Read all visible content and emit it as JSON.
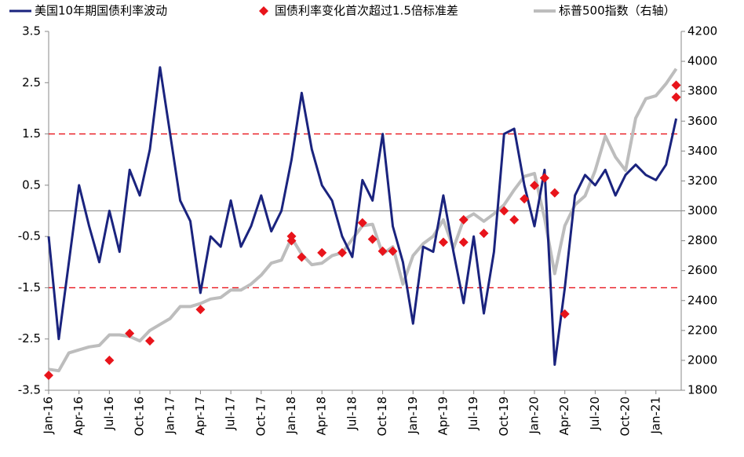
{
  "chart_data": {
    "type": "line",
    "x": [
      "Jan-16",
      "Feb-16",
      "Mar-16",
      "Apr-16",
      "May-16",
      "Jun-16",
      "Jul-16",
      "Aug-16",
      "Sep-16",
      "Oct-16",
      "Nov-16",
      "Dec-16",
      "Jan-17",
      "Feb-17",
      "Mar-17",
      "Apr-17",
      "May-17",
      "Jun-17",
      "Jul-17",
      "Aug-17",
      "Sep-17",
      "Oct-17",
      "Nov-17",
      "Dec-17",
      "Jan-18",
      "Feb-18",
      "Mar-18",
      "Apr-18",
      "May-18",
      "Jun-18",
      "Jul-18",
      "Aug-18",
      "Sep-18",
      "Oct-18",
      "Nov-18",
      "Dec-18",
      "Jan-19",
      "Feb-19",
      "Mar-19",
      "Apr-19",
      "May-19",
      "Jun-19",
      "Jul-19",
      "Aug-19",
      "Sep-19",
      "Oct-19",
      "Nov-19",
      "Dec-19",
      "Jan-20",
      "Feb-20",
      "Mar-20",
      "Apr-20",
      "May-20",
      "Jun-20",
      "Jul-20",
      "Aug-20",
      "Sep-20",
      "Oct-20",
      "Nov-20",
      "Dec-20",
      "Jan-21",
      "Feb-21",
      "Mar-21"
    ],
    "series": [
      {
        "name": "美国10年期国债利率波动",
        "color": "#1a237e",
        "axis": "y",
        "values": [
          -0.5,
          -2.5,
          -1.0,
          0.5,
          -0.3,
          -1.0,
          0.0,
          -0.8,
          0.8,
          0.3,
          1.2,
          2.8,
          1.5,
          0.2,
          -0.2,
          -1.6,
          -0.5,
          -0.7,
          0.2,
          -0.7,
          -0.3,
          0.3,
          -0.4,
          0.0,
          1.0,
          2.3,
          1.2,
          0.5,
          0.2,
          -0.5,
          -0.9,
          0.6,
          0.2,
          1.5,
          -0.3,
          -1.0,
          -2.2,
          -0.7,
          -0.8,
          0.3,
          -0.8,
          -1.8,
          -0.5,
          -2.0,
          -0.8,
          1.5,
          1.6,
          0.5,
          -0.3,
          0.8,
          -3.0,
          -1.5,
          0.3,
          0.7,
          0.5,
          0.8,
          0.3,
          0.7,
          0.9,
          0.7,
          0.6,
          0.9,
          1.8
        ]
      },
      {
        "name": "标普500指数（右轴）",
        "color": "#bdbdbd",
        "axis": "y2",
        "values": [
          1940,
          1930,
          2050,
          2070,
          2090,
          2100,
          2170,
          2170,
          2160,
          2130,
          2200,
          2240,
          2280,
          2360,
          2360,
          2380,
          2410,
          2420,
          2470,
          2470,
          2510,
          2570,
          2650,
          2670,
          2820,
          2710,
          2640,
          2650,
          2700,
          2720,
          2810,
          2900,
          2910,
          2710,
          2760,
          2510,
          2700,
          2780,
          2830,
          2940,
          2750,
          2940,
          2980,
          2930,
          2980,
          3040,
          3140,
          3230,
          3250,
          2950,
          2580,
          2900,
          3040,
          3100,
          3270,
          3500,
          3360,
          3270,
          3620,
          3750,
          3770,
          3850,
          3950
        ]
      }
    ],
    "markers": {
      "name": "国债利率变化首次超过1.5倍标准差",
      "color": "#e8141b",
      "axis": "y2",
      "x": [
        "Jan-16",
        "Jul-16",
        "Sep-16",
        "Nov-16",
        "Apr-17",
        "Jan-18",
        "Jan-18",
        "Feb-18",
        "Apr-18",
        "Jun-18",
        "Aug-18",
        "Sep-18",
        "Oct-18",
        "Nov-18",
        "Apr-19",
        "Jun-19",
        "Jun-19",
        "Aug-19",
        "Oct-19",
        "Nov-19",
        "Dec-19",
        "Jan-20",
        "Feb-20",
        "Feb-20",
        "Mar-20",
        "Apr-20",
        "Mar-21",
        "Mar-21"
      ],
      "values": [
        1900,
        2000,
        2180,
        2130,
        2340,
        2800,
        2830,
        2690,
        2720,
        2720,
        2920,
        2810,
        2730,
        2730,
        2790,
        2790,
        2940,
        2850,
        3000,
        2940,
        3080,
        3170,
        3220,
        3220,
        3120,
        2310,
        3840,
        3760
      ]
    },
    "reference_lines": [
      1.5,
      -1.5
    ],
    "ylim": [
      -3.5,
      3.5
    ],
    "yticks": [
      3.5,
      2.5,
      1.5,
      0.5,
      -0.5,
      -1.5,
      -2.5,
      -3.5
    ],
    "y2lim": [
      1800,
      4200
    ],
    "y2ticks": [
      4200,
      4000,
      3800,
      3600,
      3400,
      3200,
      3000,
      2800,
      2600,
      2400,
      2200,
      2000,
      1800
    ]
  }
}
